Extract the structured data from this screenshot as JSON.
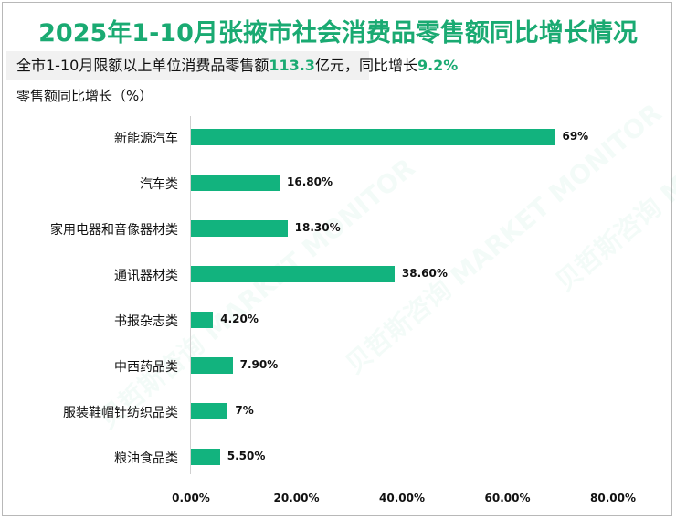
{
  "title": "2025年1-10月张掖市社会消费品零售额同比增长情况",
  "subtitle": {
    "prefix": "全市1-10月限额以上单位消费品零售额",
    "amount": "113.3",
    "mid": "亿元，同比增长",
    "growth": "9.2%"
  },
  "y_axis_label": "零售额同比增长（%）",
  "accent_color": "#1aaa72",
  "bar_color": "#12b37e",
  "watermark": "贝哲斯咨询 MARKET MONITOR",
  "chart_data": {
    "type": "bar",
    "orientation": "horizontal",
    "title": "2025年1-10月张掖市社会消费品零售额同比增长情况",
    "subtitle": "全市1-10月限额以上单位消费品零售额113.3亿元，同比增长9.2%",
    "xlabel": "",
    "ylabel": "零售额同比增长（%）",
    "categories": [
      "新能源汽车",
      "汽车类",
      "家用电器和音像器材类",
      "通讯器材类",
      "书报杂志类",
      "中西药品类",
      "服装鞋帽针纺织品类",
      "粮油食品类"
    ],
    "values": [
      69,
      16.8,
      18.3,
      38.6,
      4.2,
      7.9,
      7,
      5.5
    ],
    "value_labels": [
      "69%",
      "16.80%",
      "18.30%",
      "38.60%",
      "4.20%",
      "7.90%",
      "7%",
      "5.50%"
    ],
    "xlim": [
      0,
      80
    ],
    "x_ticks": [
      "0.00%",
      "20.00%",
      "40.00%",
      "60.00%",
      "80.00%"
    ],
    "grid": false,
    "legend": null
  }
}
